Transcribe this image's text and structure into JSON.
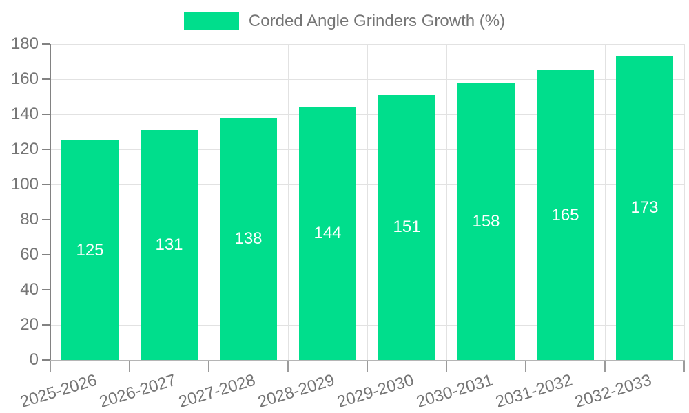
{
  "chart_data": {
    "type": "bar",
    "title": "",
    "categories": [
      "2025-2026",
      "2026-2027",
      "2027-2028",
      "2028-2029",
      "2029-2030",
      "2030-2031",
      "2031-2032",
      "2032-2033"
    ],
    "series": [
      {
        "name": "Corded Angle Grinders Growth (%)",
        "values": [
          125,
          131,
          138,
          144,
          151,
          158,
          165,
          173
        ]
      }
    ],
    "xlabel": "",
    "ylabel": "",
    "ylim": [
      0,
      180
    ],
    "yticks": [
      0,
      20,
      40,
      60,
      80,
      100,
      120,
      140,
      160,
      180
    ],
    "grid": true,
    "legend_position": "top-center",
    "value_label_position": "inside-center",
    "x_label_rotation_deg": -17,
    "colors": {
      "bar": "#00de8c",
      "value_label": "#ffffff",
      "axis_text": "#757575",
      "y_axis_line": "#828282",
      "x_axis_line": "#b5b5b5",
      "y_tick": "#828282",
      "x_tick": "#9b9b9b",
      "grid": "#e2e2e2",
      "background": "#ffffff"
    }
  }
}
